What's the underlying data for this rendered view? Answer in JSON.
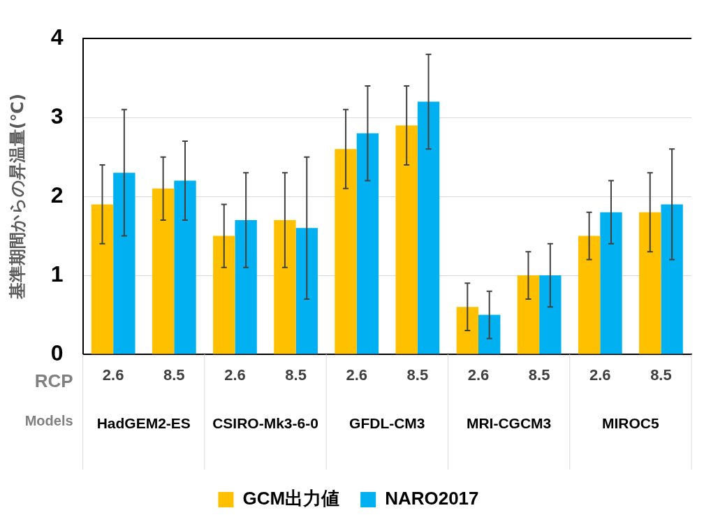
{
  "chart_data": {
    "type": "bar",
    "ylabel": "基準期間からの昇温量(℃)",
    "categories": [
      "2.6",
      "8.5",
      "2.6",
      "8.5",
      "2.6",
      "8.5",
      "2.6",
      "8.5",
      "2.6",
      "8.5"
    ],
    "series": [
      {
        "name": "GCM出力値",
        "color": "#ffc000",
        "values": [
          1.9,
          2.1,
          1.5,
          1.7,
          2.6,
          2.9,
          0.6,
          1.0,
          1.5,
          1.8
        ],
        "errors": [
          [
            1.4,
            2.4
          ],
          [
            1.7,
            2.5
          ],
          [
            1.1,
            1.9
          ],
          [
            1.1,
            2.3
          ],
          [
            2.1,
            3.1
          ],
          [
            2.4,
            3.4
          ],
          [
            0.3,
            0.9
          ],
          [
            0.7,
            1.3
          ],
          [
            1.2,
            1.8
          ],
          [
            1.3,
            2.3
          ]
        ]
      },
      {
        "name": "NARO2017",
        "color": "#00b0f0",
        "values": [
          2.3,
          2.2,
          1.7,
          1.6,
          2.8,
          3.2,
          0.5,
          1.0,
          1.8,
          1.9
        ],
        "errors": [
          [
            1.5,
            3.1
          ],
          [
            1.7,
            2.7
          ],
          [
            1.1,
            2.3
          ],
          [
            0.7,
            2.5
          ],
          [
            2.2,
            3.4
          ],
          [
            2.6,
            3.8
          ],
          [
            0.2,
            0.8
          ],
          [
            0.6,
            1.4
          ],
          [
            1.4,
            2.2
          ],
          [
            1.2,
            2.6
          ]
        ]
      }
    ],
    "annotations": [
      "RCP",
      "Models",
      "HadGEM2-ES",
      "CSIRO-Mk3-6-0",
      "GFDL-CM3",
      "MRI-CGCM3",
      "MIROC5"
    ],
    "ylim": [
      0,
      4
    ],
    "yticks": [
      0,
      1,
      2,
      3,
      4
    ],
    "grid": "y",
    "legend": "bottom"
  }
}
